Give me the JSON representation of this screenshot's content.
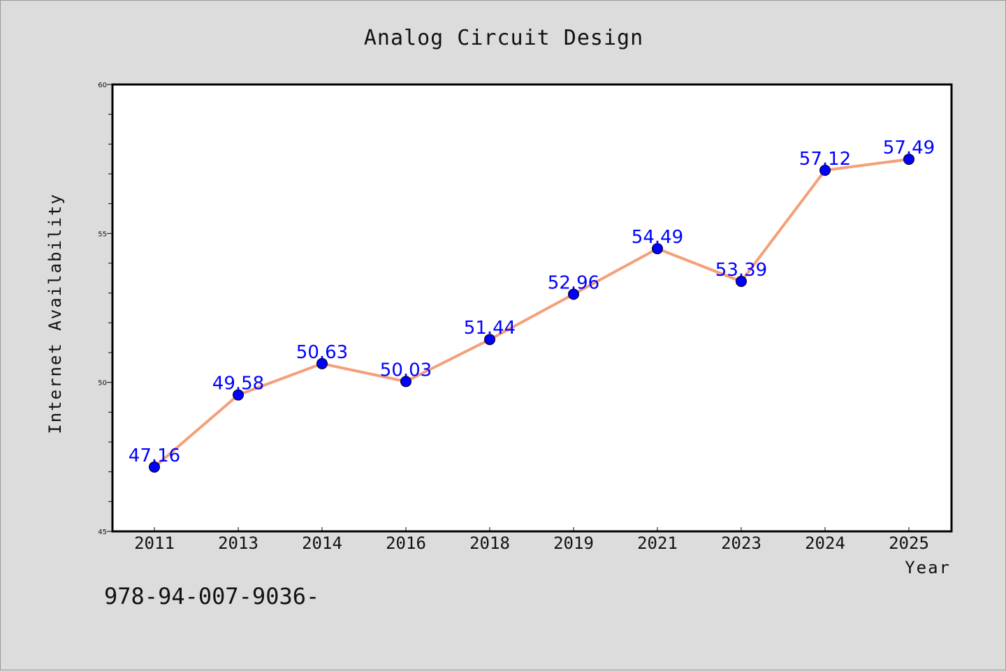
{
  "chart_data": {
    "type": "line",
    "title": "Analog Circuit Design",
    "xlabel": "Year",
    "ylabel": "Internet Availability",
    "categories": [
      "2011",
      "2013",
      "2014",
      "2016",
      "2018",
      "2019",
      "2021",
      "2023",
      "2024",
      "2025"
    ],
    "series": [
      {
        "values": [
          47.16,
          49.58,
          50.63,
          50.03,
          51.44,
          52.96,
          54.49,
          53.39,
          57.12,
          57.49
        ],
        "line_color": "#f4a07a",
        "marker_color": "#0000ff"
      }
    ],
    "data_labels": [
      "47.16",
      "49.58",
      "50.63",
      "50.03",
      "51.44",
      "52.96",
      "54.49",
      "53.39",
      "57.12",
      "57.49"
    ],
    "ylim": [
      45,
      60
    ],
    "yticks": [
      45,
      50,
      55,
      60
    ],
    "ytick_labels": [
      "45",
      "50",
      "55",
      "60"
    ],
    "grid": false,
    "legend": "none"
  },
  "footnote": "978-94-007-9036-",
  "colors": {
    "background": "#dcdcdc",
    "plot_background": "#ffffff",
    "data_label": "#0000ff"
  }
}
